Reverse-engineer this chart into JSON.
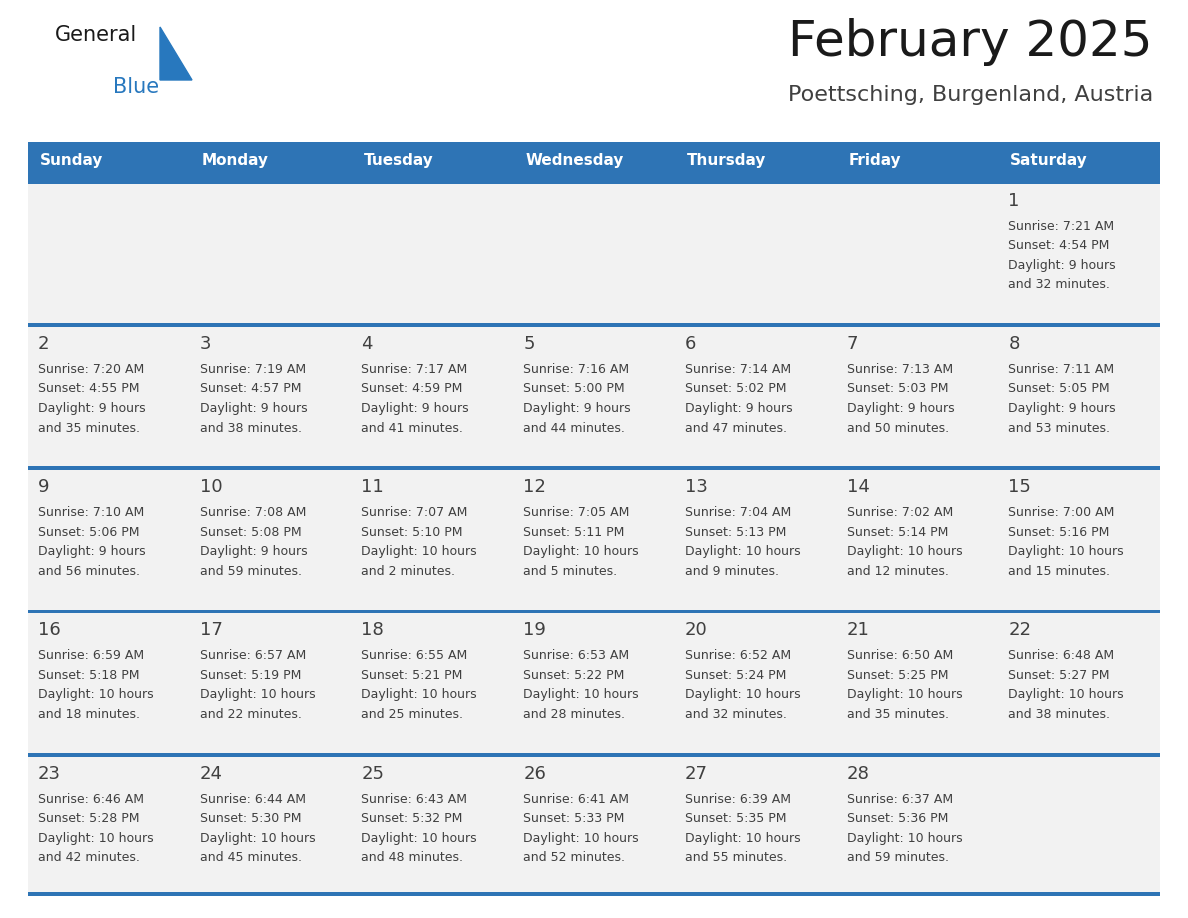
{
  "title": "February 2025",
  "subtitle": "Poettsching, Burgenland, Austria",
  "days_of_week": [
    "Sunday",
    "Monday",
    "Tuesday",
    "Wednesday",
    "Thursday",
    "Friday",
    "Saturday"
  ],
  "header_bg": "#2E74B5",
  "header_text_color": "#FFFFFF",
  "cell_bg": "#F2F2F2",
  "row_line_color": "#2E74B5",
  "text_color": "#404040",
  "day_num_color": "#404040",
  "title_color": "#1a1a1a",
  "subtitle_color": "#404040",
  "logo_general_color": "#1a1a1a",
  "logo_blue_color": "#2878BE",
  "calendar_data": [
    [
      {
        "day": null,
        "sunrise": null,
        "sunset": null,
        "daylight": null
      },
      {
        "day": null,
        "sunrise": null,
        "sunset": null,
        "daylight": null
      },
      {
        "day": null,
        "sunrise": null,
        "sunset": null,
        "daylight": null
      },
      {
        "day": null,
        "sunrise": null,
        "sunset": null,
        "daylight": null
      },
      {
        "day": null,
        "sunrise": null,
        "sunset": null,
        "daylight": null
      },
      {
        "day": null,
        "sunrise": null,
        "sunset": null,
        "daylight": null
      },
      {
        "day": 1,
        "sunrise": "7:21 AM",
        "sunset": "4:54 PM",
        "daylight": "9 hours",
        "daylight2": "and 32 minutes."
      }
    ],
    [
      {
        "day": 2,
        "sunrise": "7:20 AM",
        "sunset": "4:55 PM",
        "daylight": "9 hours",
        "daylight2": "and 35 minutes."
      },
      {
        "day": 3,
        "sunrise": "7:19 AM",
        "sunset": "4:57 PM",
        "daylight": "9 hours",
        "daylight2": "and 38 minutes."
      },
      {
        "day": 4,
        "sunrise": "7:17 AM",
        "sunset": "4:59 PM",
        "daylight": "9 hours",
        "daylight2": "and 41 minutes."
      },
      {
        "day": 5,
        "sunrise": "7:16 AM",
        "sunset": "5:00 PM",
        "daylight": "9 hours",
        "daylight2": "and 44 minutes."
      },
      {
        "day": 6,
        "sunrise": "7:14 AM",
        "sunset": "5:02 PM",
        "daylight": "9 hours",
        "daylight2": "and 47 minutes."
      },
      {
        "day": 7,
        "sunrise": "7:13 AM",
        "sunset": "5:03 PM",
        "daylight": "9 hours",
        "daylight2": "and 50 minutes."
      },
      {
        "day": 8,
        "sunrise": "7:11 AM",
        "sunset": "5:05 PM",
        "daylight": "9 hours",
        "daylight2": "and 53 minutes."
      }
    ],
    [
      {
        "day": 9,
        "sunrise": "7:10 AM",
        "sunset": "5:06 PM",
        "daylight": "9 hours",
        "daylight2": "and 56 minutes."
      },
      {
        "day": 10,
        "sunrise": "7:08 AM",
        "sunset": "5:08 PM",
        "daylight": "9 hours",
        "daylight2": "and 59 minutes."
      },
      {
        "day": 11,
        "sunrise": "7:07 AM",
        "sunset": "5:10 PM",
        "daylight": "10 hours",
        "daylight2": "and 2 minutes."
      },
      {
        "day": 12,
        "sunrise": "7:05 AM",
        "sunset": "5:11 PM",
        "daylight": "10 hours",
        "daylight2": "and 5 minutes."
      },
      {
        "day": 13,
        "sunrise": "7:04 AM",
        "sunset": "5:13 PM",
        "daylight": "10 hours",
        "daylight2": "and 9 minutes."
      },
      {
        "day": 14,
        "sunrise": "7:02 AM",
        "sunset": "5:14 PM",
        "daylight": "10 hours",
        "daylight2": "and 12 minutes."
      },
      {
        "day": 15,
        "sunrise": "7:00 AM",
        "sunset": "5:16 PM",
        "daylight": "10 hours",
        "daylight2": "and 15 minutes."
      }
    ],
    [
      {
        "day": 16,
        "sunrise": "6:59 AM",
        "sunset": "5:18 PM",
        "daylight": "10 hours",
        "daylight2": "and 18 minutes."
      },
      {
        "day": 17,
        "sunrise": "6:57 AM",
        "sunset": "5:19 PM",
        "daylight": "10 hours",
        "daylight2": "and 22 minutes."
      },
      {
        "day": 18,
        "sunrise": "6:55 AM",
        "sunset": "5:21 PM",
        "daylight": "10 hours",
        "daylight2": "and 25 minutes."
      },
      {
        "day": 19,
        "sunrise": "6:53 AM",
        "sunset": "5:22 PM",
        "daylight": "10 hours",
        "daylight2": "and 28 minutes."
      },
      {
        "day": 20,
        "sunrise": "6:52 AM",
        "sunset": "5:24 PM",
        "daylight": "10 hours",
        "daylight2": "and 32 minutes."
      },
      {
        "day": 21,
        "sunrise": "6:50 AM",
        "sunset": "5:25 PM",
        "daylight": "10 hours",
        "daylight2": "and 35 minutes."
      },
      {
        "day": 22,
        "sunrise": "6:48 AM",
        "sunset": "5:27 PM",
        "daylight": "10 hours",
        "daylight2": "and 38 minutes."
      }
    ],
    [
      {
        "day": 23,
        "sunrise": "6:46 AM",
        "sunset": "5:28 PM",
        "daylight": "10 hours",
        "daylight2": "and 42 minutes."
      },
      {
        "day": 24,
        "sunrise": "6:44 AM",
        "sunset": "5:30 PM",
        "daylight": "10 hours",
        "daylight2": "and 45 minutes."
      },
      {
        "day": 25,
        "sunrise": "6:43 AM",
        "sunset": "5:32 PM",
        "daylight": "10 hours",
        "daylight2": "and 48 minutes."
      },
      {
        "day": 26,
        "sunrise": "6:41 AM",
        "sunset": "5:33 PM",
        "daylight": "10 hours",
        "daylight2": "and 52 minutes."
      },
      {
        "day": 27,
        "sunrise": "6:39 AM",
        "sunset": "5:35 PM",
        "daylight": "10 hours",
        "daylight2": "and 55 minutes."
      },
      {
        "day": 28,
        "sunrise": "6:37 AM",
        "sunset": "5:36 PM",
        "daylight": "10 hours",
        "daylight2": "and 59 minutes."
      },
      {
        "day": null,
        "sunrise": null,
        "sunset": null,
        "daylight": null,
        "daylight2": null
      }
    ]
  ]
}
